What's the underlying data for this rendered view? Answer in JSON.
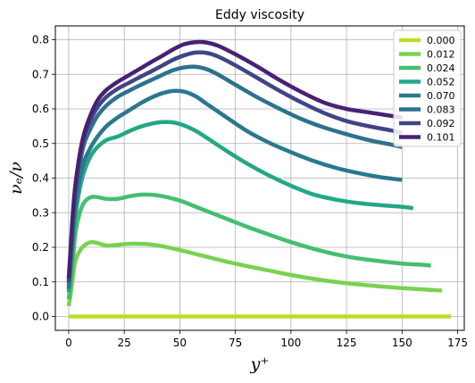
{
  "chart_data": {
    "type": "line",
    "title": "Eddy viscosity",
    "xlabel": "y⁺",
    "ylabel": "νₑ/ν",
    "xlim": [
      -6,
      178
    ],
    "ylim": [
      -0.04,
      0.84
    ],
    "xticks": [
      0,
      25,
      50,
      75,
      100,
      125,
      150,
      175
    ],
    "yticks": [
      0.0,
      0.1,
      0.2,
      0.3,
      0.4,
      0.5,
      0.6,
      0.7,
      0.8
    ],
    "grid": true,
    "legend_position": "top-right",
    "series": [
      {
        "name": "0.000",
        "color": "#bddf26",
        "x": [
          0,
          172
        ],
        "y": [
          0.0,
          0.0
        ]
      },
      {
        "name": "0.012",
        "color": "#7ad151",
        "x": [
          0,
          1,
          2,
          3,
          5,
          7,
          10,
          13,
          17,
          22,
          27,
          32,
          37,
          42,
          50,
          60,
          70,
          80,
          90,
          100,
          110,
          120,
          130,
          140,
          150,
          160,
          168
        ],
        "y": [
          0.03,
          0.07,
          0.12,
          0.16,
          0.19,
          0.205,
          0.215,
          0.212,
          0.205,
          0.207,
          0.21,
          0.21,
          0.208,
          0.203,
          0.192,
          0.176,
          0.16,
          0.146,
          0.133,
          0.12,
          0.109,
          0.1,
          0.093,
          0.087,
          0.082,
          0.078,
          0.075
        ]
      },
      {
        "name": "0.024",
        "color": "#44bf70",
        "x": [
          0,
          1,
          2,
          3,
          5,
          7,
          10,
          13,
          17,
          22,
          27,
          32,
          37,
          42,
          50,
          60,
          70,
          80,
          90,
          100,
          110,
          120,
          130,
          140,
          150,
          160,
          163
        ],
        "y": [
          0.05,
          0.1,
          0.17,
          0.24,
          0.3,
          0.33,
          0.345,
          0.345,
          0.34,
          0.34,
          0.347,
          0.352,
          0.352,
          0.348,
          0.335,
          0.31,
          0.285,
          0.26,
          0.237,
          0.215,
          0.196,
          0.18,
          0.168,
          0.16,
          0.153,
          0.149,
          0.147
        ]
      },
      {
        "name": "0.052",
        "color": "#22a884",
        "x": [
          0,
          1,
          2,
          3,
          5,
          7,
          10,
          13,
          17,
          22,
          27,
          32,
          37,
          42,
          47,
          52,
          57,
          62,
          70,
          80,
          90,
          100,
          110,
          120,
          130,
          140,
          150,
          155
        ],
        "y": [
          0.07,
          0.14,
          0.22,
          0.29,
          0.37,
          0.42,
          0.465,
          0.49,
          0.51,
          0.52,
          0.535,
          0.548,
          0.557,
          0.562,
          0.561,
          0.552,
          0.537,
          0.517,
          0.483,
          0.443,
          0.408,
          0.378,
          0.353,
          0.338,
          0.328,
          0.322,
          0.317,
          0.313
        ]
      },
      {
        "name": "0.070",
        "color": "#2a788e",
        "x": [
          0,
          1,
          2,
          3,
          5,
          7,
          10,
          13,
          17,
          22,
          27,
          32,
          37,
          42,
          47,
          52,
          57,
          62,
          70,
          80,
          90,
          100,
          110,
          120,
          130,
          140,
          150
        ],
        "y": [
          0.08,
          0.16,
          0.25,
          0.32,
          0.4,
          0.45,
          0.49,
          0.52,
          0.55,
          0.575,
          0.595,
          0.615,
          0.632,
          0.645,
          0.652,
          0.65,
          0.637,
          0.615,
          0.58,
          0.537,
          0.503,
          0.475,
          0.45,
          0.43,
          0.415,
          0.403,
          0.395
        ]
      },
      {
        "name": "0.083",
        "color": "#2c728e",
        "x": [
          0,
          1,
          2,
          3,
          5,
          7,
          10,
          13,
          17,
          22,
          27,
          32,
          37,
          42,
          47,
          52,
          57,
          62,
          67,
          75,
          85,
          95,
          105,
          115,
          125,
          135,
          145,
          150
        ],
        "y": [
          0.09,
          0.18,
          0.28,
          0.35,
          0.44,
          0.5,
          0.545,
          0.58,
          0.61,
          0.635,
          0.652,
          0.668,
          0.683,
          0.698,
          0.712,
          0.72,
          0.722,
          0.715,
          0.7,
          0.67,
          0.633,
          0.6,
          0.57,
          0.546,
          0.527,
          0.51,
          0.497,
          0.49
        ]
      },
      {
        "name": "0.092",
        "color": "#414487",
        "x": [
          0,
          1,
          2,
          3,
          5,
          7,
          10,
          13,
          17,
          22,
          27,
          32,
          37,
          42,
          47,
          52,
          57,
          62,
          67,
          75,
          85,
          95,
          105,
          115,
          125,
          135,
          145,
          150
        ],
        "y": [
          0.1,
          0.2,
          0.3,
          0.37,
          0.46,
          0.52,
          0.57,
          0.605,
          0.635,
          0.658,
          0.675,
          0.692,
          0.708,
          0.725,
          0.742,
          0.755,
          0.763,
          0.762,
          0.752,
          0.726,
          0.689,
          0.652,
          0.618,
          0.588,
          0.565,
          0.55,
          0.538,
          0.53
        ]
      },
      {
        "name": "0.101",
        "color": "#482173",
        "x": [
          0,
          1,
          2,
          3,
          5,
          7,
          10,
          13,
          17,
          22,
          27,
          32,
          37,
          42,
          47,
          52,
          57,
          62,
          67,
          75,
          85,
          95,
          105,
          115,
          125,
          135,
          145,
          150
        ],
        "y": [
          0.11,
          0.21,
          0.31,
          0.38,
          0.47,
          0.53,
          0.585,
          0.625,
          0.655,
          0.678,
          0.697,
          0.716,
          0.735,
          0.753,
          0.772,
          0.787,
          0.793,
          0.792,
          0.783,
          0.758,
          0.722,
          0.683,
          0.648,
          0.618,
          0.6,
          0.59,
          0.58,
          0.575
        ]
      }
    ]
  }
}
